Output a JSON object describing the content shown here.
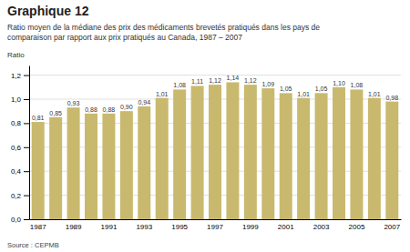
{
  "chart_data": {
    "type": "bar",
    "title": "Graphique 12",
    "subtitle": "Ratio moyen de la médiane des prix des médicaments brevetés pratiqués dans les pays de\ncomparaison par rapport aux prix pratiqués au Canada, 1987 – 2007",
    "y_label": "Ratio",
    "source": "Source : CEPMB",
    "categories": [
      "1987",
      null,
      "1989",
      null,
      "1991",
      null,
      "1993",
      null,
      "1995",
      null,
      "1997",
      null,
      "1999",
      null,
      "2001",
      null,
      "2003",
      null,
      "2005",
      null,
      "2007"
    ],
    "values": [
      0.81,
      0.85,
      0.93,
      0.88,
      0.88,
      0.9,
      0.94,
      1.01,
      1.08,
      1.11,
      1.12,
      1.14,
      1.12,
      1.09,
      1.05,
      1.01,
      1.05,
      1.1,
      1.08,
      1.01,
      0.98
    ],
    "value_labels": [
      "0,81",
      "0,85",
      "0,93",
      "0,88",
      "0,88",
      "0,90",
      "0,94",
      "1,01",
      "1,08",
      "1,11",
      "1,12",
      "1,14",
      "1,12",
      "1,09",
      "1,05",
      "1,01",
      "1,05",
      "1,10",
      "1,08",
      "1,01",
      "0,98"
    ],
    "data_labels": true,
    "color": "#C8B96E",
    "ylim": [
      0.0,
      1.28
    ],
    "yticks": [
      {
        "value": 0.0,
        "label": "0,0"
      },
      {
        "value": 0.2,
        "label": "0,2"
      },
      {
        "value": 0.4,
        "label": "0,4"
      },
      {
        "value": 0.6,
        "label": "0,6"
      },
      {
        "value": 0.8,
        "label": "0,8"
      },
      {
        "value": 1.0,
        "label": "1,0"
      },
      {
        "value": 1.2,
        "label": "1,2"
      }
    ],
    "grid": true
  }
}
